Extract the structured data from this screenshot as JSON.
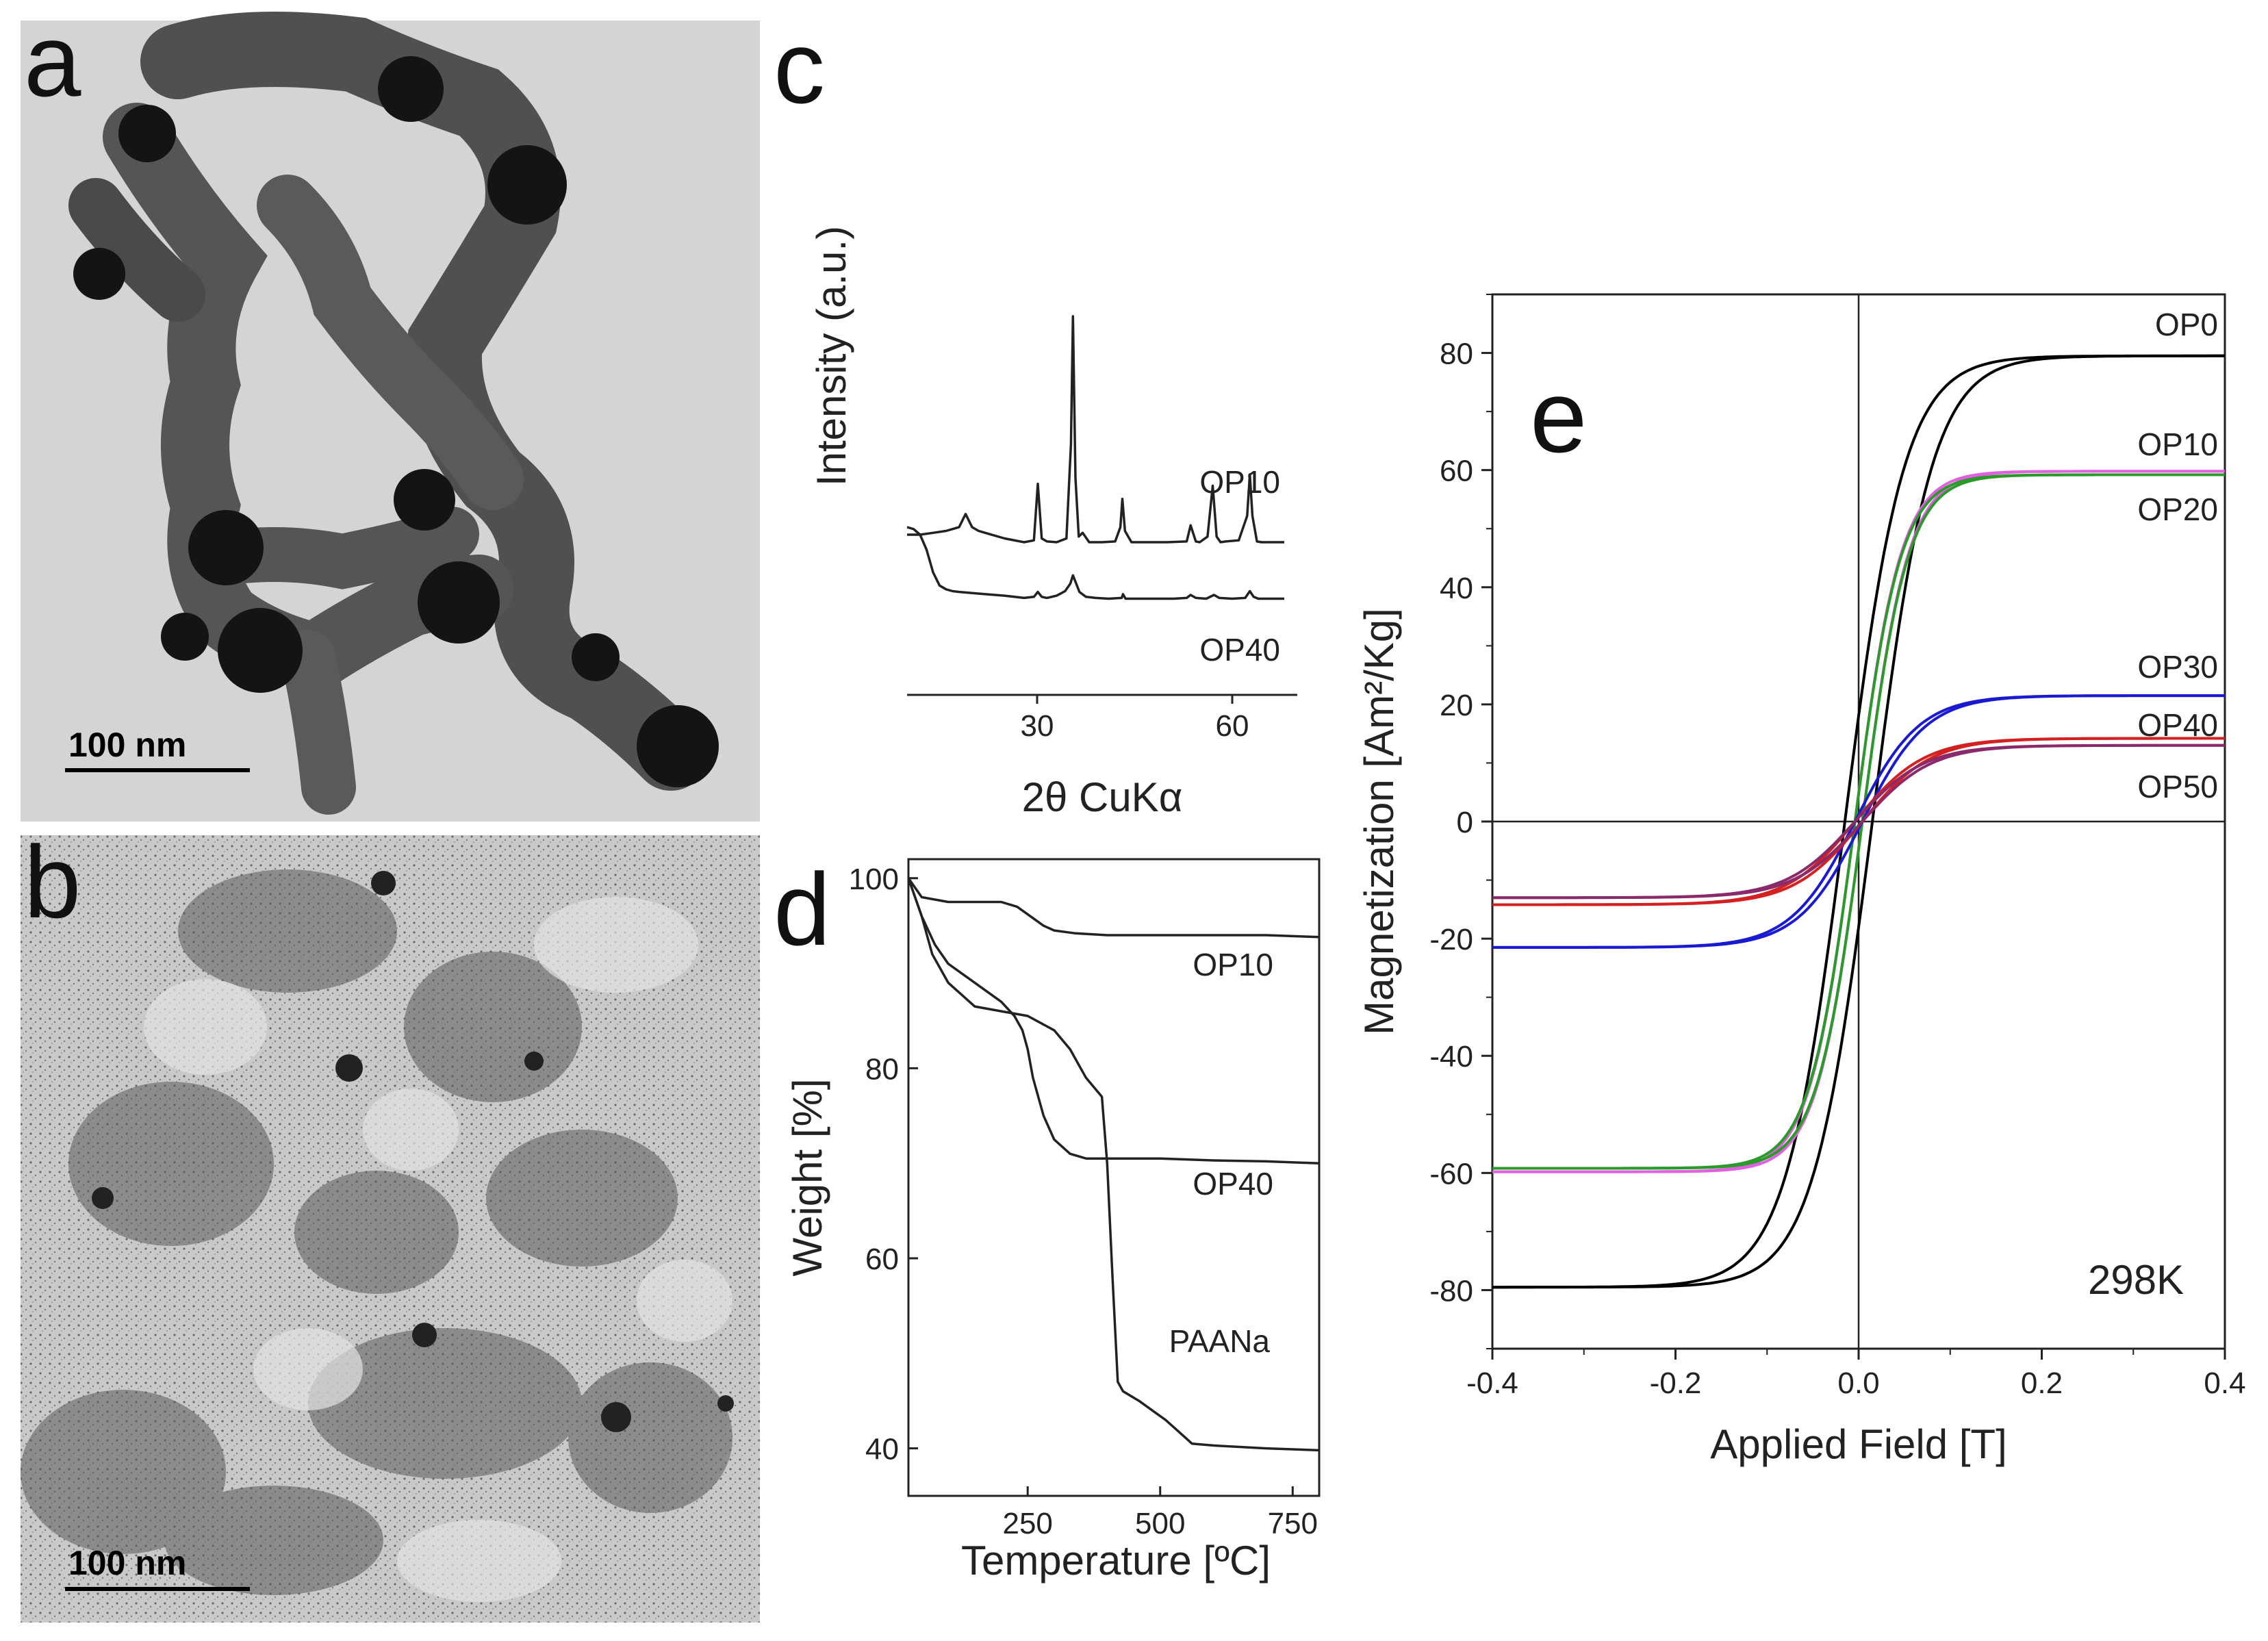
{
  "panels": {
    "a": {
      "letter": "a",
      "scale_bar": "100 nm"
    },
    "b": {
      "letter": "b",
      "scale_bar": "100 nm"
    }
  },
  "chart_data": [
    {
      "panel": "c",
      "type": "line",
      "ylabel": "Intensity (a.u.)",
      "xlabel": "2θ CuKα",
      "xlim": [
        10,
        70
      ],
      "xticks": [
        30,
        60
      ],
      "series": [
        {
          "name": "OP10",
          "baseline": 1.6,
          "x": [
            10,
            12,
            14,
            16,
            18,
            19,
            20,
            21,
            22,
            25,
            28,
            29.5,
            30.1,
            30.7,
            31.5,
            33,
            34.5,
            35.2,
            35.5,
            35.9,
            36.4,
            37,
            38,
            40,
            42,
            42.8,
            43.1,
            43.5,
            44.5,
            47,
            50,
            53,
            53.6,
            54.4,
            55,
            56.2,
            57,
            57.6,
            58.2,
            59,
            61,
            62.3,
            62.7,
            63.1,
            63.8,
            64.5,
            66,
            68
          ],
          "y": [
            1.8,
            1.8,
            1.85,
            1.9,
            2.0,
            2.35,
            2.0,
            1.9,
            1.85,
            1.7,
            1.6,
            1.65,
            3.15,
            1.7,
            1.62,
            1.6,
            1.7,
            4.2,
            7.6,
            3.3,
            1.75,
            1.85,
            1.6,
            1.6,
            1.62,
            2.0,
            2.75,
            1.9,
            1.6,
            1.6,
            1.6,
            1.62,
            2.05,
            1.62,
            1.6,
            1.75,
            3.1,
            1.75,
            1.6,
            1.62,
            1.65,
            2.3,
            3.4,
            2.3,
            1.62,
            1.6,
            1.6,
            1.6
          ]
        },
        {
          "name": "OP40",
          "baseline": 0,
          "x": [
            10,
            11,
            12,
            13,
            14,
            15,
            16,
            17,
            18,
            20,
            22,
            25,
            28,
            29.5,
            30.1,
            30.7,
            31.5,
            33,
            34.3,
            35.1,
            35.5,
            35.9,
            36.5,
            37.5,
            39,
            41,
            43,
            43.2,
            43.6,
            45,
            48,
            51,
            53,
            53.6,
            54.4,
            56,
            57.2,
            58,
            60,
            62,
            62.7,
            63.3,
            64,
            66,
            68
          ],
          "y": [
            2.0,
            1.95,
            1.8,
            1.4,
            0.8,
            0.45,
            0.35,
            0.3,
            0.28,
            0.25,
            0.22,
            0.18,
            0.12,
            0.15,
            0.28,
            0.15,
            0.12,
            0.18,
            0.3,
            0.5,
            0.72,
            0.55,
            0.28,
            0.15,
            0.12,
            0.1,
            0.12,
            0.22,
            0.1,
            0.1,
            0.1,
            0.1,
            0.12,
            0.2,
            0.12,
            0.1,
            0.2,
            0.12,
            0.1,
            0.12,
            0.3,
            0.15,
            0.1,
            0.1,
            0.1
          ]
        }
      ]
    },
    {
      "panel": "d",
      "type": "line",
      "ylabel": "Weight [%]",
      "xlabel": "Temperature [ºC]",
      "xlim": [
        25,
        800
      ],
      "ylim": [
        35,
        102
      ],
      "xticks": [
        250,
        500,
        750
      ],
      "yticks": [
        40,
        60,
        80,
        100
      ],
      "series": [
        {
          "name": "OP10",
          "x": [
            25,
            50,
            100,
            150,
            200,
            230,
            260,
            280,
            300,
            340,
            400,
            500,
            600,
            700,
            800
          ],
          "y": [
            100,
            98,
            97.5,
            97.5,
            97.5,
            97,
            95.8,
            95,
            94.5,
            94.2,
            94,
            94,
            94,
            94,
            93.8
          ]
        },
        {
          "name": "OP40",
          "x": [
            25,
            50,
            75,
            100,
            125,
            150,
            175,
            200,
            225,
            240,
            250,
            260,
            280,
            300,
            330,
            360,
            400,
            500,
            600,
            700,
            800
          ],
          "y": [
            100,
            96,
            93,
            91,
            90,
            89,
            88,
            87,
            85.5,
            84,
            82,
            79,
            75,
            72.5,
            71,
            70.5,
            70.5,
            70.5,
            70.3,
            70.2,
            70
          ]
        },
        {
          "name": "PAANa",
          "x": [
            25,
            50,
            70,
            100,
            150,
            200,
            250,
            300,
            330,
            360,
            390,
            400,
            410,
            420,
            430,
            460,
            490,
            510,
            530,
            560,
            600,
            700,
            800
          ],
          "y": [
            100,
            96,
            92,
            89,
            86.5,
            86,
            85.5,
            84,
            82,
            79,
            77,
            70,
            58,
            47,
            46,
            45,
            43.8,
            43,
            42,
            40.5,
            40.3,
            40,
            39.8
          ]
        }
      ]
    },
    {
      "panel": "e",
      "type": "line",
      "ylabel": "Magnetization [Am²/Kg]",
      "xlabel": "Applied Field [T]",
      "xlim": [
        -0.4,
        0.4
      ],
      "ylim": [
        -90,
        90
      ],
      "xticks": [
        -0.4,
        -0.2,
        0.0,
        0.2,
        0.4
      ],
      "yticks": [
        -80,
        -60,
        -40,
        -20,
        0,
        20,
        40,
        60,
        80
      ],
      "annotation": "298K",
      "series": [
        {
          "name": "OP0",
          "color": "#000000",
          "Ms": 79.5,
          "Hc": 0.015,
          "H0": 0.065
        },
        {
          "name": "OP10",
          "color": "#e060e0",
          "Ms": 59.8,
          "Hc": 0.004,
          "H0": 0.05
        },
        {
          "name": "OP20",
          "color": "#2a9a2a",
          "Ms": 59.2,
          "Hc": 0.004,
          "H0": 0.05
        },
        {
          "name": "OP30",
          "color": "#1a1ad0",
          "Ms": 21.5,
          "Hc": 0.004,
          "H0": 0.07
        },
        {
          "name": "OP40",
          "color": "#d42020",
          "Ms": 14.2,
          "Hc": 0.004,
          "H0": 0.075
        },
        {
          "name": "OP50",
          "color": "#8a2a6a",
          "Ms": 13.0,
          "Hc": 0.004,
          "H0": 0.075
        }
      ]
    }
  ]
}
